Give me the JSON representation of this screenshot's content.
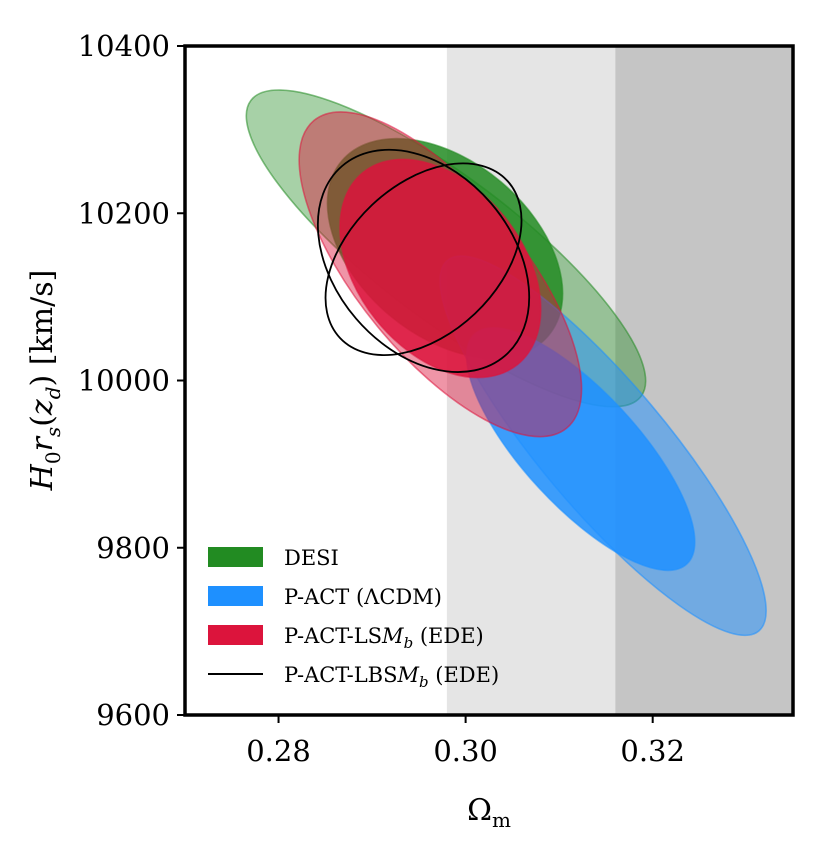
{
  "chart_data": {
    "type": "contour",
    "xlabel": "Ω",
    "xlabel_sub": "m",
    "ylabel_parts": [
      {
        "t": "H",
        "i": true
      },
      {
        "t": "0",
        "sub": true
      },
      {
        "t": "r",
        "i": true
      },
      {
        "t": "s",
        "sub": true,
        "i": true
      },
      {
        "t": "(",
        "i": false
      },
      {
        "t": "z",
        "i": true
      },
      {
        "t": "d",
        "sub": true,
        "i": true
      },
      {
        "t": ")  [km/s]",
        "i": false
      }
    ],
    "xlim": [
      0.27,
      0.335
    ],
    "ylim": [
      9600,
      10400
    ],
    "xticks": [
      0.28,
      0.3,
      0.32
    ],
    "xtick_labels": [
      "0.28",
      "0.30",
      "0.32"
    ],
    "yticks": [
      9600,
      9800,
      10000,
      10200,
      10400
    ],
    "ytick_labels": [
      "9600",
      "9800",
      "10000",
      "10200",
      "10400"
    ],
    "shaded_bands": [
      {
        "x0": 0.298,
        "x1": 0.316,
        "color": "#e5e5e5"
      },
      {
        "x0": 0.316,
        "x1": 0.335,
        "color": "#c5c5c5"
      }
    ],
    "series": [
      {
        "name": "DESI",
        "color": "#228B22",
        "style": "filled",
        "contours": [
          {
            "level": "2σ",
            "center": [
              0.2979,
              10158
            ],
            "ends": [
              [
                0.2771,
                10336
              ],
              [
                0.3188,
                9982
              ]
            ],
            "half_width": 0.0125,
            "fill_opacity": 0.4
          },
          {
            "level": "1σ",
            "center": [
              0.2978,
              10158
            ],
            "ends": [
              [
                0.2868,
                10262
              ],
              [
                0.3089,
                10053
              ]
            ],
            "half_width": 0.0144,
            "fill_opacity": 0.85
          }
        ]
      },
      {
        "name": "P-ACT (ΛCDM)",
        "color": "#1E90FF",
        "style": "filled",
        "contours": [
          {
            "level": "2σ",
            "center": [
              0.3147,
              9922
            ],
            "ends": [
              [
                0.298,
                10145
              ],
              [
                0.3313,
                9702
              ]
            ],
            "half_width": 0.0088,
            "fill_opacity": 0.5
          },
          {
            "level": "1σ",
            "center": [
              0.3123,
              9918
            ],
            "ends": [
              [
                0.301,
                10065
              ],
              [
                0.3237,
                9790
              ]
            ],
            "half_width": 0.0083,
            "fill_opacity": 0.85
          }
        ]
      },
      {
        "name": "P-ACT-LS",
        "name_math": "M",
        "name_math_sub": "b",
        "name_suffix": " (EDE)",
        "color": "#DC143C",
        "style": "filled",
        "contours": [
          {
            "level": "2σ",
            "center": [
              0.2973,
              10127
            ],
            "ends": [
              [
                0.2838,
                10308
              ],
              [
                0.3108,
                9940
              ]
            ],
            "half_width": 0.0113,
            "fill_opacity": 0.45
          },
          {
            "level": "1σ",
            "center": [
              0.2973,
              10134
            ],
            "ends": [
              [
                0.289,
                10245
              ],
              [
                0.3055,
                10015
              ]
            ],
            "half_width": 0.0113,
            "fill_opacity": 0.85
          }
        ]
      },
      {
        "name": "P-ACT-LBS",
        "name_math": "M",
        "name_math_sub": "b",
        "name_suffix": " (EDE)",
        "color": "#000000",
        "style": "line",
        "contours": [
          {
            "level": "2σ",
            "center": [
              0.2955,
              10143
            ],
            "ends": [
              [
                0.2868,
                10257
              ],
              [
                0.3042,
                10030
              ]
            ],
            "half_width": 0.0125
          },
          {
            "level": "1σ",
            "center": [
              0.2955,
              10145
            ],
            "ends": [
              [
                0.29,
                10210
              ],
              [
                0.301,
                10080
              ]
            ],
            "half_width": 0.0169
          }
        ]
      }
    ],
    "legend": {
      "position": "lower-left"
    }
  }
}
